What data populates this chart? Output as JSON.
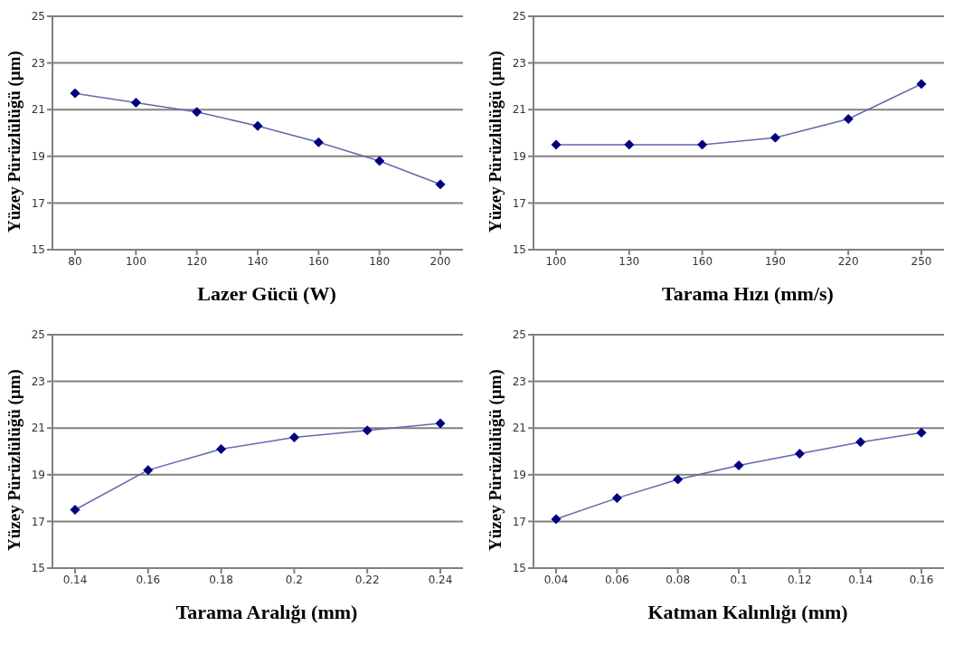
{
  "chart_data": [
    {
      "type": "line",
      "xlabel": "Lazer Gücü (W)",
      "ylabel": "Yüzey Pürüzlülüğü (µm)",
      "categories": [
        "80",
        "100",
        "120",
        "140",
        "160",
        "180",
        "200"
      ],
      "series": [
        {
          "color": "#000080",
          "values": [
            21.7,
            21.3,
            20.9,
            20.3,
            19.6,
            18.8,
            17.8
          ]
        }
      ],
      "ylim": [
        15,
        25
      ],
      "yticks": [
        15,
        17,
        19,
        21,
        23,
        25
      ],
      "grid": "y",
      "marker": "diamond",
      "legend": false
    },
    {
      "type": "line",
      "xlabel": "Tarama Hızı (mm/s)",
      "ylabel": "Yüzey Pürüzlülüğü (µm)",
      "categories": [
        "100",
        "130",
        "160",
        "190",
        "220",
        "250"
      ],
      "series": [
        {
          "color": "#000080",
          "values": [
            19.5,
            19.5,
            19.5,
            19.8,
            20.6,
            22.1
          ]
        }
      ],
      "ylim": [
        15,
        25
      ],
      "yticks": [
        15,
        17,
        19,
        21,
        23,
        25
      ],
      "grid": "y",
      "marker": "diamond",
      "legend": false
    },
    {
      "type": "line",
      "xlabel": "Tarama Aralığı (mm)",
      "ylabel": "Yüzey Pürüzlülüğü (µm)",
      "categories": [
        "0.14",
        "0.16",
        "0.18",
        "0.2",
        "0.22",
        "0.24"
      ],
      "series": [
        {
          "color": "#000080",
          "values": [
            17.5,
            19.2,
            20.1,
            20.6,
            20.9,
            21.2
          ]
        }
      ],
      "ylim": [
        15,
        25
      ],
      "yticks": [
        15,
        17,
        19,
        21,
        23,
        25
      ],
      "grid": "y",
      "marker": "diamond",
      "legend": false
    },
    {
      "type": "line",
      "xlabel": "Katman Kalınlığı (mm)",
      "ylabel": "Yüzey Pürüzlülüğü (µm)",
      "categories": [
        "0.04",
        "0.06",
        "0.08",
        "0.1",
        "0.12",
        "0.14",
        "0.16"
      ],
      "series": [
        {
          "color": "#000080",
          "values": [
            17.1,
            18.0,
            18.8,
            19.4,
            19.9,
            20.4,
            20.8
          ]
        }
      ],
      "ylim": [
        15,
        25
      ],
      "yticks": [
        15,
        17,
        19,
        21,
        23,
        25
      ],
      "grid": "y",
      "marker": "diamond",
      "legend": false
    }
  ]
}
